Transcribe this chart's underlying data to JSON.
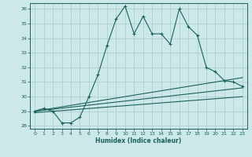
{
  "xlabel": "Humidex (Indice chaleur)",
  "bg_color": "#cce8e8",
  "grid_color": "#aacccc",
  "line_color": "#1a6060",
  "xlim": [
    -0.5,
    23.5
  ],
  "ylim": [
    27.8,
    36.4
  ],
  "xticks": [
    0,
    1,
    2,
    3,
    4,
    5,
    6,
    7,
    8,
    9,
    10,
    11,
    12,
    13,
    14,
    15,
    16,
    17,
    18,
    19,
    20,
    21,
    22,
    23
  ],
  "yticks": [
    28,
    29,
    30,
    31,
    32,
    33,
    34,
    35,
    36
  ],
  "series1_x": [
    0,
    1,
    2,
    3,
    4,
    5,
    6,
    7,
    8,
    9,
    10,
    11,
    12,
    13,
    14,
    15,
    16,
    17,
    18,
    19,
    20,
    21,
    22,
    23
  ],
  "series1_y": [
    29.0,
    29.2,
    29.0,
    28.2,
    28.2,
    28.6,
    30.0,
    31.5,
    33.5,
    35.3,
    36.2,
    34.3,
    35.5,
    34.3,
    34.3,
    33.6,
    36.0,
    34.8,
    34.2,
    32.0,
    31.7,
    31.1,
    31.0,
    30.7
  ],
  "series3_x": [
    0,
    23
  ],
  "series3_y": [
    29.0,
    31.3
  ],
  "series4_x": [
    0,
    23
  ],
  "series4_y": [
    29.0,
    30.6
  ],
  "series5_x": [
    0,
    23
  ],
  "series5_y": [
    28.9,
    30.0
  ]
}
